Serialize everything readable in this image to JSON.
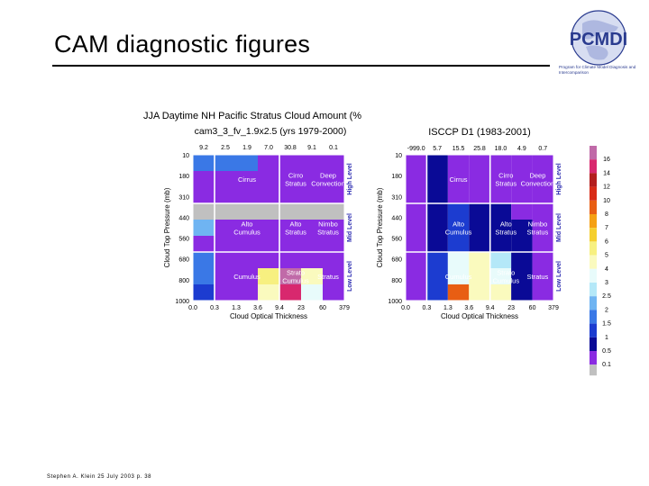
{
  "slide": {
    "title": "CAM diagnostic figures",
    "footer": "Stephen A. Klein 25 July 2003 p. 38"
  },
  "logo": {
    "text": "PCMDI",
    "subtitle": "Program for Climate Model Diagnosis and Intercomparison"
  },
  "colors": {
    "accent": "#2a3b8f",
    "cell_border": "#ffffff"
  },
  "chart_data": [
    {
      "type": "heatmap",
      "title": "JJA Daytime NH Pacific Stratus Cloud Amount (%",
      "subtitle": "cam3_3_fv_1.9x2.5 (yrs 1979-2000)",
      "xlabel": "Cloud Optical Thickness",
      "ylabel": "Cloud Top Pressure (mb)",
      "x_ticks": [
        "0.0",
        "0.3",
        "1.3",
        "3.6",
        "9.4",
        "23",
        "60",
        "379"
      ],
      "y_ticks": [
        "10",
        "180",
        "310",
        "440",
        "560",
        "680",
        "800",
        "1000"
      ],
      "column_totals": [
        "9.2",
        "2.5",
        "1.9",
        "7.0",
        "30.8",
        "9.1",
        "0.1"
      ],
      "level_labels": [
        "High Level",
        "Mid Level",
        "Low Level"
      ],
      "cloud_types": [
        [
          "Cirrus",
          "Cirro\nStratus",
          "Deep\nConvection"
        ],
        [
          "Alto\nCumulus",
          "Alto\nStratus",
          "Nimbo\nStratus"
        ],
        [
          "Cumulus",
          "Strato\nCumulus",
          "Stratus"
        ]
      ],
      "values": [
        [
          1.5,
          1.5,
          1.5,
          0.05,
          0.05,
          0.05,
          0.05
        ],
        [
          0.05,
          0.05,
          0.05,
          0.05,
          0.05,
          0.05,
          0.05
        ],
        [
          0.05,
          0.05,
          0.05,
          0.05,
          0.05,
          0.05,
          0.05
        ],
        [
          0.0,
          0.0,
          0.0,
          0.0,
          0.0,
          0.0,
          0.0
        ],
        [
          2.0,
          0.05,
          0.05,
          0.05,
          0.05,
          0.05,
          0.05
        ],
        [
          0.05,
          0.05,
          0.05,
          0.05,
          0.05,
          0.05,
          0.05
        ],
        [
          1.5,
          0.05,
          0.05,
          0.05,
          0.05,
          0.05,
          0.05
        ],
        [
          1.5,
          0.05,
          0.05,
          5.0,
          16.0,
          4.0,
          0.05
        ],
        [
          1.0,
          0.05,
          0.05,
          4.0,
          14.0,
          3.0,
          0.05
        ]
      ]
    },
    {
      "type": "heatmap",
      "title": "ISCCP D1 (1983-2001)",
      "xlabel": "Cloud Optical Thickness",
      "ylabel": "Cloud Top Pressure (mb)",
      "x_ticks": [
        "0.0",
        "0.3",
        "1.3",
        "3.6",
        "9.4",
        "23",
        "60",
        "379"
      ],
      "y_ticks": [
        "10",
        "180",
        "310",
        "440",
        "560",
        "680",
        "800",
        "1000"
      ],
      "column_totals": [
        "-999.0",
        "5.7",
        "15.5",
        "25.8",
        "18.0",
        "4.9",
        "0.7"
      ],
      "level_labels": [
        "High Level",
        "Mid Level",
        "Low Level"
      ],
      "cloud_types": [
        [
          "Cirrus",
          "Cirro\nStratus",
          "Deep\nConvection"
        ],
        [
          "Alto\nCumulus",
          "Alto\nStratus",
          "Nimbo\nStratus"
        ],
        [
          "Cumulus",
          "Strato\nCumulus",
          "Stratus"
        ]
      ],
      "values": [
        [
          0.05,
          0.5,
          0.2,
          0.2,
          0.05,
          0.05,
          0.05
        ],
        [
          0.05,
          0.5,
          0.2,
          0.2,
          0.2,
          0.05,
          0.05
        ],
        [
          0.05,
          0.5,
          0.05,
          0.05,
          0.05,
          0.05,
          0.05
        ],
        [
          0.05,
          0.8,
          1.0,
          0.8,
          0.5,
          0.2,
          0.05
        ],
        [
          0.05,
          0.8,
          1.0,
          0.8,
          0.8,
          0.5,
          0.05
        ],
        [
          0.05,
          0.8,
          1.0,
          0.8,
          0.5,
          0.5,
          0.05
        ],
        [
          0.05,
          1.0,
          3.0,
          4.0,
          2.5,
          0.5,
          0.05
        ],
        [
          0.05,
          1.0,
          3.0,
          4.0,
          3.0,
          0.8,
          0.05
        ],
        [
          0.05,
          1.0,
          8.0,
          4.0,
          4.0,
          0.8,
          0.05
        ]
      ]
    }
  ],
  "legend": {
    "levels": [
      "0.1",
      "0.5",
      "1",
      "1.5",
      "2",
      "2.5",
      "3",
      "4",
      "5",
      "6",
      "7",
      "8",
      "10",
      "12",
      "14",
      "16"
    ],
    "colors": [
      "#8a2be2",
      "#0a0a96",
      "#1c3cd0",
      "#3a78e6",
      "#6fb4f2",
      "#b4e8f8",
      "#e8fbfb",
      "#fafabe",
      "#f7f080",
      "#f5cf2e",
      "#f5a013",
      "#e85e13",
      "#d82b17",
      "#b31e1e",
      "#d8286e",
      "#c06aa8"
    ],
    "zero_color": "#c0c0c0"
  }
}
